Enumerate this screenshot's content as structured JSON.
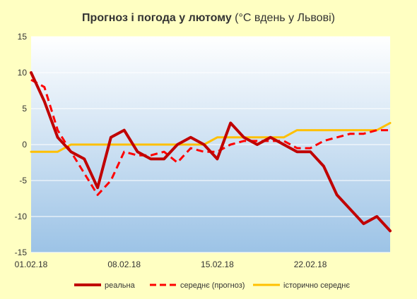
{
  "chart_data": {
    "type": "line",
    "title_bold": "Прогноз і погода у лютому",
    "title_normal": " (°С вдень у Львові)",
    "xlabel": "",
    "ylabel": "",
    "ylim": [
      -15,
      15
    ],
    "yticks": [
      15,
      10,
      5,
      0,
      -5,
      -10,
      -15
    ],
    "x_labels": [
      {
        "day": 1,
        "label": "01.02.18"
      },
      {
        "day": 8,
        "label": "08.02.18"
      },
      {
        "day": 15,
        "label": "15.02.18"
      },
      {
        "day": 22,
        "label": "22.02.18"
      }
    ],
    "x_range": [
      1,
      28
    ],
    "grid": "horizontal",
    "legend_position": "bottom",
    "series": [
      {
        "name": "реальна",
        "color": "#C00000",
        "style": "solid",
        "x": [
          1,
          2,
          3,
          4,
          5,
          6,
          7,
          8,
          9,
          10,
          11,
          12,
          13,
          14,
          15,
          16,
          17,
          18,
          19,
          20,
          21,
          22,
          23,
          24,
          25,
          26,
          27,
          28
        ],
        "values": [
          10,
          6,
          1,
          -1,
          -2,
          -6,
          1,
          2,
          -1,
          -2,
          -2,
          0,
          1,
          0,
          -2,
          3,
          1,
          0,
          1,
          0,
          -1,
          -1,
          -3,
          -7,
          -9,
          -11,
          -10,
          -12
        ]
      },
      {
        "name": "середнє (прогноз)",
        "color": "#FF0000",
        "style": "dashed",
        "x": [
          1,
          2,
          3,
          4,
          5,
          6,
          7,
          8,
          9,
          10,
          11,
          12,
          13,
          14,
          15,
          16,
          17,
          18,
          19,
          20,
          21,
          22,
          23,
          24,
          25,
          26,
          27,
          28
        ],
        "values": [
          9,
          8,
          2,
          -1,
          -4,
          -7,
          -5,
          -1,
          -1.5,
          -1.5,
          -1,
          -2.5,
          -0.5,
          -1,
          -1,
          0,
          0.5,
          0.5,
          0.5,
          0.5,
          -0.5,
          -0.5,
          0.5,
          1,
          1.5,
          1.5,
          2,
          2
        ]
      },
      {
        "name": "історично середнє",
        "color": "#FFC000",
        "style": "solid",
        "x": [
          1,
          2,
          3,
          4,
          5,
          6,
          7,
          8,
          9,
          10,
          11,
          12,
          13,
          14,
          15,
          16,
          17,
          18,
          19,
          20,
          21,
          22,
          23,
          24,
          25,
          26,
          27,
          28
        ],
        "values": [
          -1,
          -1,
          -1,
          0,
          0,
          0,
          0,
          0,
          0,
          0,
          0,
          0,
          0,
          0,
          1,
          1,
          1,
          1,
          1,
          1,
          2,
          2,
          2,
          2,
          2,
          2,
          2,
          3
        ]
      }
    ]
  },
  "colors": {
    "page_background": "#FFFFC2",
    "plot_top": "#FFFFFF",
    "plot_bottom": "#9CC3E6",
    "gridline": "#FFFFFF"
  }
}
